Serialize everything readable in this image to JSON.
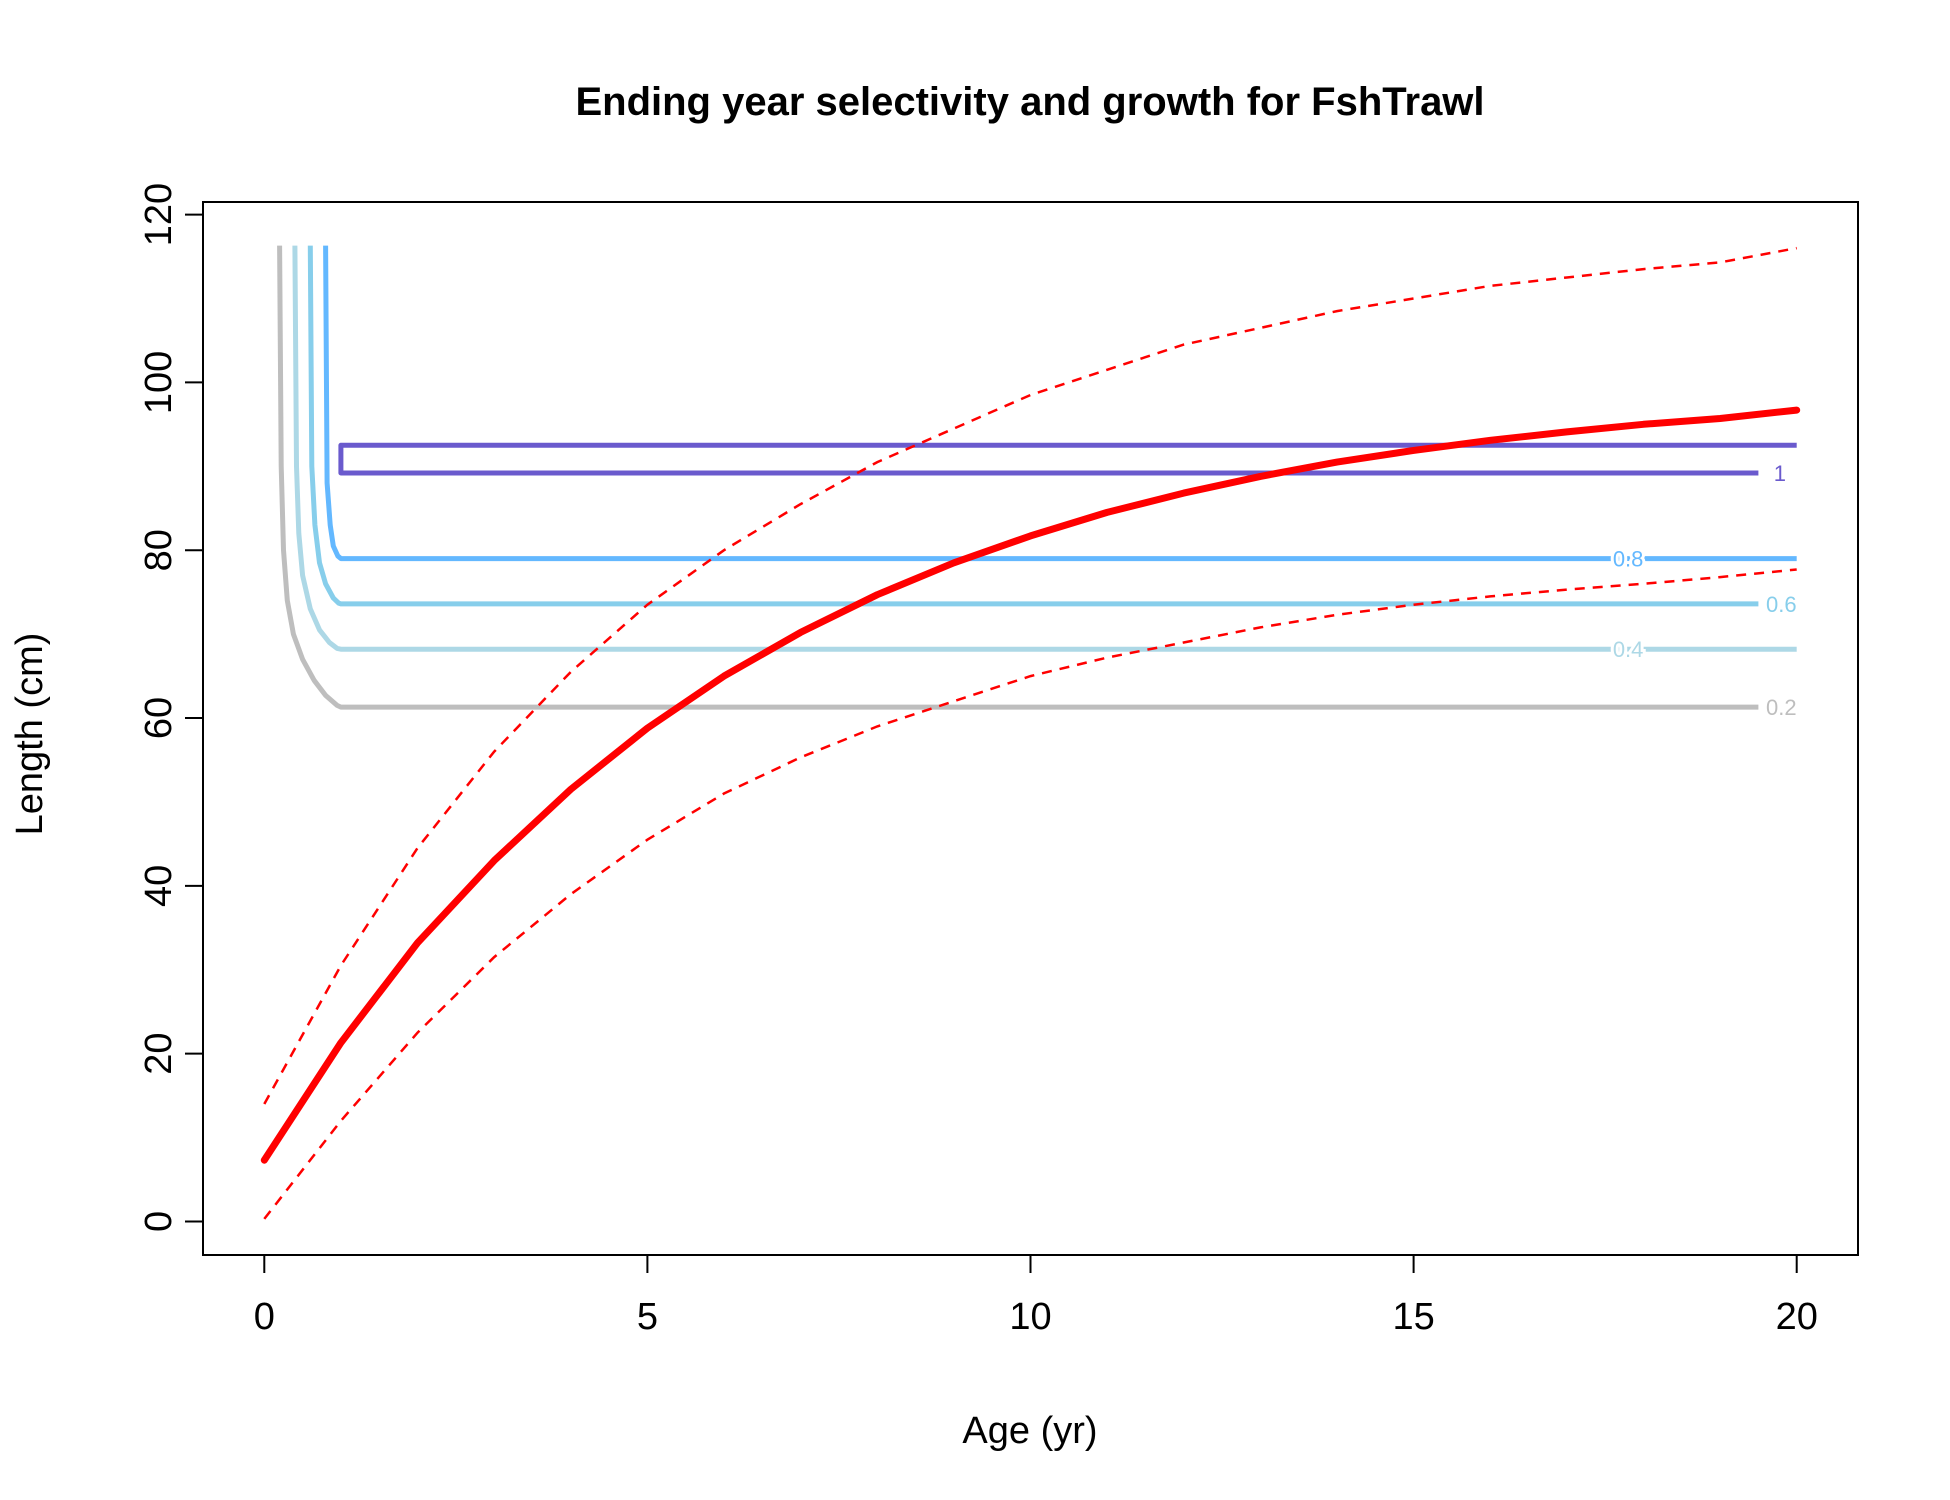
{
  "chart_data": {
    "type": "line",
    "title": "Ending year selectivity and growth for FshTrawl",
    "xlabel": "Age (yr)",
    "ylabel": "Length (cm)",
    "xlim": [
      -0.8,
      20.8
    ],
    "ylim": [
      -4,
      121.5
    ],
    "xticks": [
      0,
      5,
      10,
      15,
      20
    ],
    "yticks": [
      0,
      20,
      40,
      60,
      80,
      100,
      120
    ],
    "grid": false,
    "legend": "none",
    "growth": {
      "color": "#ff0000",
      "mean": {
        "x": [
          0,
          1,
          2,
          3,
          4,
          5,
          6,
          7,
          8,
          9,
          10,
          11,
          12,
          13,
          14,
          15,
          16,
          17,
          18,
          19,
          20
        ],
        "y": [
          7.3,
          21.3,
          33.2,
          43.0,
          51.5,
          58.8,
          65.0,
          70.2,
          74.7,
          78.5,
          81.7,
          84.5,
          86.8,
          88.8,
          90.5,
          91.9,
          93.1,
          94.1,
          95.0,
          95.7,
          96.7
        ]
      },
      "upper": {
        "x": [
          0,
          1,
          2,
          3,
          4,
          5,
          6,
          7,
          8,
          9,
          10,
          11,
          12,
          13,
          14,
          15,
          16,
          17,
          18,
          19,
          20
        ],
        "y": [
          14.0,
          30.5,
          44.5,
          56.0,
          65.5,
          73.5,
          80.0,
          85.5,
          90.5,
          94.5,
          98.5,
          101.5,
          104.5,
          106.5,
          108.5,
          110.0,
          111.5,
          112.5,
          113.5,
          114.3,
          116.0
        ]
      },
      "lower": {
        "x": [
          0,
          1,
          2,
          3,
          4,
          5,
          6,
          7,
          8,
          9,
          10,
          11,
          12,
          13,
          14,
          15,
          16,
          17,
          18,
          19,
          20
        ],
        "y": [
          0.3,
          12.0,
          22.5,
          31.5,
          39.0,
          45.5,
          51.0,
          55.3,
          59.0,
          62.0,
          65.0,
          67.2,
          69.0,
          70.8,
          72.3,
          73.5,
          74.5,
          75.3,
          76.0,
          76.8,
          77.7
        ]
      }
    },
    "selectivity_contours": [
      {
        "level": "0.2",
        "color": "#bebebe",
        "x": [
          0.2,
          0.22,
          0.25,
          0.3,
          0.38,
          0.5,
          0.65,
          0.8,
          0.95,
          1.0,
          19.5
        ],
        "y": [
          116.3,
          90.0,
          80.0,
          74.0,
          70.0,
          67.0,
          64.5,
          62.7,
          61.5,
          61.3,
          61.3
        ],
        "label_x": 19.6,
        "label_y": 61.3
      },
      {
        "level": "0.4",
        "color": "#add8e6",
        "x": [
          0.4,
          0.42,
          0.45,
          0.5,
          0.6,
          0.72,
          0.85,
          0.95,
          1.0,
          20.0
        ],
        "y": [
          116.3,
          90.0,
          82.0,
          77.0,
          73.0,
          70.5,
          69.0,
          68.3,
          68.2,
          68.2
        ],
        "label_x": 17.6,
        "label_y": 68.2
      },
      {
        "level": "0.6",
        "color": "#87ceeb",
        "x": [
          0.6,
          0.62,
          0.66,
          0.72,
          0.8,
          0.9,
          0.97,
          1.0,
          19.5
        ],
        "y": [
          116.3,
          90.0,
          83.0,
          78.5,
          76.0,
          74.3,
          73.7,
          73.6,
          73.6
        ],
        "label_x": 19.6,
        "label_y": 73.6
      },
      {
        "level": "0.8",
        "color": "#63b8ff",
        "x": [
          0.8,
          0.82,
          0.86,
          0.9,
          0.96,
          1.0,
          20.0
        ],
        "y": [
          116.3,
          88.0,
          83.0,
          80.5,
          79.3,
          79.0,
          79.0
        ],
        "label_x": 17.6,
        "label_y": 79.0
      },
      {
        "level": "1",
        "color": "#6a5acd",
        "x": [
          20.0,
          1.0,
          1.0,
          19.5
        ],
        "y": [
          92.5,
          92.5,
          89.2,
          89.2
        ],
        "label_x": 19.7,
        "label_y": 89.2
      }
    ]
  }
}
